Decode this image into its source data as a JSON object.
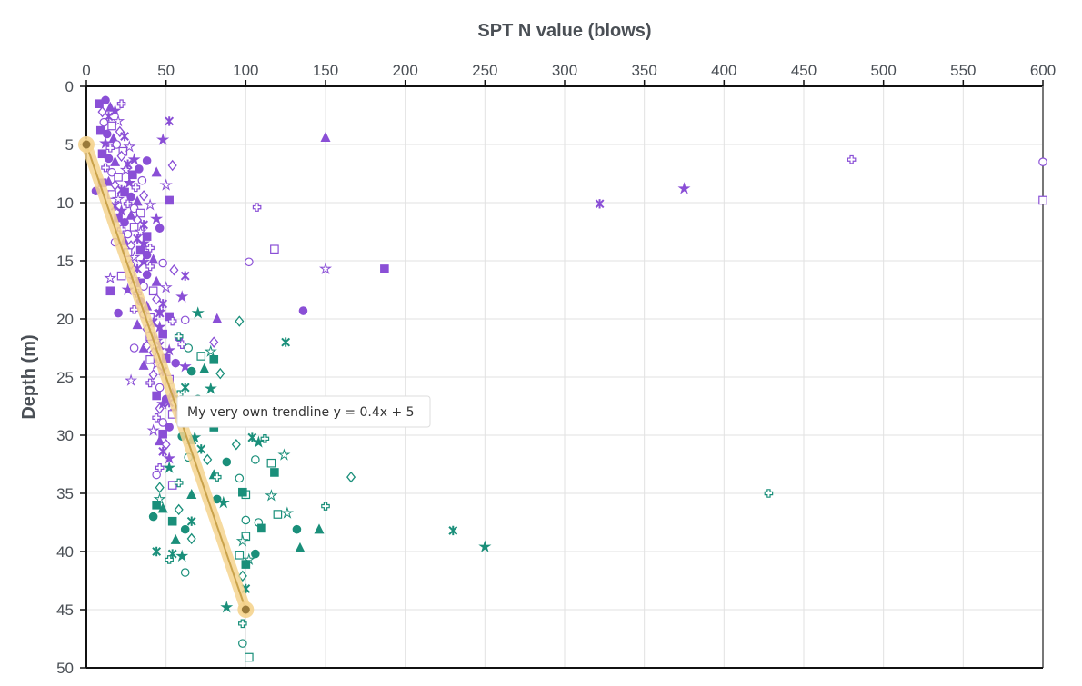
{
  "chart_data": {
    "type": "scatter",
    "xlabel": "SPT N value (blows)",
    "ylabel": "Depth (m)",
    "xlim": [
      0,
      600
    ],
    "ylim": [
      0,
      50
    ],
    "y_inverted": true,
    "x_axis_position": "top",
    "x_ticks": [
      0,
      50,
      100,
      150,
      200,
      250,
      300,
      350,
      400,
      450,
      500,
      550,
      600
    ],
    "y_ticks": [
      0,
      5,
      10,
      15,
      20,
      25,
      30,
      35,
      40,
      45,
      50
    ],
    "grid": true,
    "series": [
      {
        "color": "#8a4fd6",
        "points": [
          [
            8,
            1.5
          ],
          [
            12,
            1.2
          ],
          [
            15,
            1.8
          ],
          [
            10,
            2.2
          ],
          [
            14,
            2.6
          ],
          [
            18,
            2.1
          ],
          [
            22,
            1.5
          ],
          [
            11,
            3.1
          ],
          [
            16,
            3.4
          ],
          [
            20,
            3.0
          ],
          [
            9,
            3.8
          ],
          [
            13,
            4.1
          ],
          [
            17,
            4.5
          ],
          [
            21,
            3.9
          ],
          [
            24,
            4.3
          ],
          [
            12,
            4.9
          ],
          [
            15,
            5.3
          ],
          [
            19,
            5.0
          ],
          [
            23,
            5.6
          ],
          [
            27,
            5.2
          ],
          [
            10,
            5.8
          ],
          [
            14,
            6.2
          ],
          [
            18,
            6.5
          ],
          [
            22,
            6.0
          ],
          [
            26,
            6.7
          ],
          [
            30,
            6.3
          ],
          [
            12,
            7.0
          ],
          [
            16,
            7.4
          ],
          [
            20,
            7.8
          ],
          [
            25,
            7.2
          ],
          [
            29,
            7.6
          ],
          [
            33,
            7.1
          ],
          [
            14,
            8.2
          ],
          [
            18,
            8.5
          ],
          [
            22,
            8.9
          ],
          [
            27,
            8.3
          ],
          [
            31,
            8.7
          ],
          [
            35,
            8.1
          ],
          [
            16,
            9.3
          ],
          [
            20,
            9.7
          ],
          [
            24,
            9.1
          ],
          [
            28,
            9.5
          ],
          [
            32,
            9.9
          ],
          [
            36,
            9.4
          ],
          [
            18,
            10.3
          ],
          [
            22,
            10.7
          ],
          [
            26,
            10.1
          ],
          [
            30,
            10.5
          ],
          [
            34,
            10.9
          ],
          [
            40,
            10.2
          ],
          [
            20,
            11.3
          ],
          [
            24,
            11.7
          ],
          [
            28,
            11.1
          ],
          [
            32,
            11.5
          ],
          [
            36,
            11.9
          ],
          [
            44,
            11.4
          ],
          [
            22,
            12.3
          ],
          [
            26,
            12.7
          ],
          [
            30,
            12.1
          ],
          [
            34,
            12.5
          ],
          [
            38,
            12.9
          ],
          [
            46,
            12.2
          ],
          [
            24,
            13.3
          ],
          [
            28,
            13.7
          ],
          [
            32,
            13.1
          ],
          [
            36,
            13.5
          ],
          [
            40,
            13.9
          ],
          [
            18,
            13.4
          ],
          [
            26,
            14.3
          ],
          [
            30,
            14.7
          ],
          [
            34,
            14.1
          ],
          [
            38,
            14.5
          ],
          [
            42,
            14.9
          ],
          [
            28,
            15.3
          ],
          [
            32,
            15.7
          ],
          [
            36,
            15.1
          ],
          [
            40,
            15.5
          ],
          [
            48,
            15.2
          ],
          [
            22,
            16.3
          ],
          [
            30,
            16.6
          ],
          [
            34,
            16.9
          ],
          [
            38,
            16.2
          ],
          [
            44,
            16.8
          ],
          [
            55,
            15.8
          ],
          [
            62,
            16.3
          ],
          [
            26,
            17.5
          ],
          [
            32,
            17.8
          ],
          [
            36,
            17.2
          ],
          [
            42,
            17.6
          ],
          [
            50,
            17.3
          ],
          [
            15,
            17.6
          ],
          [
            34,
            18.5
          ],
          [
            38,
            18.9
          ],
          [
            44,
            18.3
          ],
          [
            48,
            18.7
          ],
          [
            60,
            18.1
          ],
          [
            30,
            19.2
          ],
          [
            36,
            19.6
          ],
          [
            40,
            19.9
          ],
          [
            46,
            19.4
          ],
          [
            52,
            19.8
          ],
          [
            20,
            19.5
          ],
          [
            32,
            20.5
          ],
          [
            38,
            20.9
          ],
          [
            42,
            20.3
          ],
          [
            46,
            20.7
          ],
          [
            54,
            20.2
          ],
          [
            62,
            20.1
          ],
          [
            40,
            21.5
          ],
          [
            44,
            21.9
          ],
          [
            48,
            21.3
          ],
          [
            58,
            21.6
          ],
          [
            36,
            22.5
          ],
          [
            42,
            22.9
          ],
          [
            46,
            22.3
          ],
          [
            52,
            22.7
          ],
          [
            60,
            22.2
          ],
          [
            30,
            22.5
          ],
          [
            40,
            23.5
          ],
          [
            44,
            23.9
          ],
          [
            50,
            23.4
          ],
          [
            56,
            23.8
          ],
          [
            36,
            24.0
          ],
          [
            42,
            24.8
          ],
          [
            48,
            24.5
          ],
          [
            62,
            24.1
          ],
          [
            40,
            25.5
          ],
          [
            46,
            25.9
          ],
          [
            52,
            25.2
          ],
          [
            28,
            25.3
          ],
          [
            44,
            26.6
          ],
          [
            50,
            26.9
          ],
          [
            54,
            26.4
          ],
          [
            46,
            27.7
          ],
          [
            52,
            27.2
          ],
          [
            56,
            27.9
          ],
          [
            44,
            28.5
          ],
          [
            48,
            28.9
          ],
          [
            54,
            28.2
          ],
          [
            42,
            29.6
          ],
          [
            48,
            29.9
          ],
          [
            52,
            29.3
          ],
          [
            46,
            30.5
          ],
          [
            50,
            30.8
          ],
          [
            48,
            31.4
          ],
          [
            52,
            32.0
          ],
          [
            46,
            32.8
          ],
          [
            44,
            33.4
          ],
          [
            54,
            34.3
          ],
          [
            15,
            16.5
          ],
          [
            10,
            8.3
          ],
          [
            6,
            9.0
          ],
          [
            150,
            4.4
          ],
          [
            54,
            6.8
          ],
          [
            52,
            3.0
          ],
          [
            48,
            4.6
          ],
          [
            107,
            10.4
          ],
          [
            102,
            15.1
          ],
          [
            118,
            14.0
          ],
          [
            150,
            15.7
          ],
          [
            187,
            15.7
          ],
          [
            136,
            19.3
          ],
          [
            82,
            20.0
          ],
          [
            80,
            22.0
          ],
          [
            322,
            10.1
          ],
          [
            375,
            8.8
          ],
          [
            480,
            6.3
          ],
          [
            600,
            6.5
          ],
          [
            600,
            9.8
          ],
          [
            50,
            8.5
          ],
          [
            52,
            9.8
          ],
          [
            38,
            6.4
          ],
          [
            44,
            7.4
          ],
          [
            38,
            22.3
          ],
          [
            46,
            19.5
          ],
          [
            48,
            27.3
          ]
        ]
      },
      {
        "color": "#1a8f7a",
        "points": [
          [
            96,
            20.2
          ],
          [
            125,
            22.0
          ],
          [
            70,
            19.5
          ],
          [
            58,
            21.5
          ],
          [
            64,
            22.5
          ],
          [
            72,
            23.2
          ],
          [
            78,
            22.8
          ],
          [
            80,
            23.5
          ],
          [
            66,
            24.5
          ],
          [
            74,
            24.3
          ],
          [
            84,
            24.7
          ],
          [
            62,
            25.9
          ],
          [
            78,
            26.0
          ],
          [
            58,
            26.5
          ],
          [
            70,
            26.9
          ],
          [
            60,
            28.0
          ],
          [
            70,
            28.6
          ],
          [
            80,
            29.3
          ],
          [
            60,
            30.1
          ],
          [
            66,
            30.4
          ],
          [
            94,
            30.8
          ],
          [
            104,
            30.2
          ],
          [
            108,
            30.6
          ],
          [
            112,
            30.3
          ],
          [
            106,
            32.1
          ],
          [
            116,
            32.4
          ],
          [
            124,
            31.7
          ],
          [
            118,
            33.2
          ],
          [
            88,
            32.3
          ],
          [
            80,
            33.4
          ],
          [
            76,
            32.1
          ],
          [
            72,
            31.2
          ],
          [
            68,
            30.2
          ],
          [
            82,
            33.6
          ],
          [
            96,
            33.7
          ],
          [
            100,
            35.1
          ],
          [
            116,
            35.2
          ],
          [
            98,
            34.9
          ],
          [
            82,
            35.5
          ],
          [
            66,
            35.1
          ],
          [
            58,
            36.4
          ],
          [
            66,
            37.4
          ],
          [
            86,
            35.8
          ],
          [
            150,
            36.1
          ],
          [
            108,
            37.5
          ],
          [
            120,
            36.8
          ],
          [
            126,
            36.7
          ],
          [
            110,
            38.0
          ],
          [
            132,
            38.1
          ],
          [
            146,
            38.1
          ],
          [
            166,
            33.6
          ],
          [
            230,
            38.2
          ],
          [
            250,
            39.6
          ],
          [
            428,
            35.0
          ],
          [
            100,
            37.3
          ],
          [
            100,
            38.7
          ],
          [
            98,
            39.1
          ],
          [
            54,
            37.4
          ],
          [
            62,
            38.1
          ],
          [
            56,
            39.0
          ],
          [
            66,
            38.9
          ],
          [
            54,
            40.2
          ],
          [
            60,
            40.4
          ],
          [
            52,
            40.7
          ],
          [
            62,
            41.8
          ],
          [
            96,
            40.3
          ],
          [
            102,
            40.7
          ],
          [
            100,
            41.1
          ],
          [
            106,
            40.2
          ],
          [
            134,
            39.7
          ],
          [
            98,
            42.1
          ],
          [
            100,
            43.2
          ],
          [
            88,
            44.8
          ],
          [
            98,
            46.2
          ],
          [
            98,
            47.9
          ],
          [
            102,
            49.1
          ],
          [
            46,
            35.5
          ],
          [
            44,
            36.0
          ],
          [
            42,
            37.0
          ],
          [
            48,
            36.3
          ],
          [
            46,
            34.5
          ],
          [
            44,
            40.0
          ],
          [
            52,
            32.8
          ],
          [
            58,
            34.1
          ],
          [
            64,
            31.9
          ]
        ]
      },
      {
        "color": "#c9a24a",
        "name": "My very own trendline y = 0.4x + 5",
        "points": [
          [
            0,
            5
          ],
          [
            100,
            45
          ]
        ]
      }
    ]
  }
}
